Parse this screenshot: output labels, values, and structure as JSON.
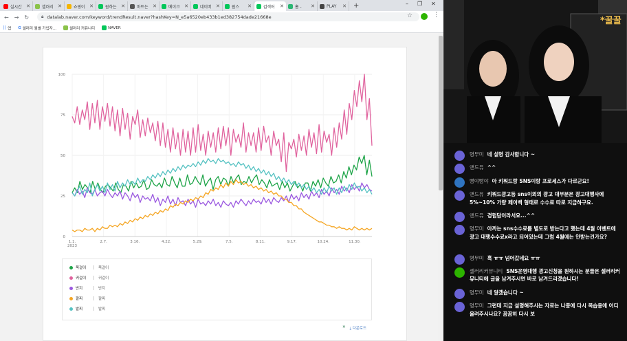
{
  "tabs": [
    {
      "title": "실시간",
      "color": "#ff0000"
    },
    {
      "title": "셀러리",
      "color": "#8bc34a"
    },
    {
      "title": "쇼핑이",
      "color": "#f5b400"
    },
    {
      "title": "원하는",
      "color": "#03c75a"
    },
    {
      "title": "마트는",
      "color": "#555555"
    },
    {
      "title": "메이크",
      "color": "#03c75a"
    },
    {
      "title": "네이버",
      "color": "#03c75a"
    },
    {
      "title": "원스",
      "color": "#03c75a"
    },
    {
      "title": "검색어",
      "color": "#03c75a",
      "active": true
    },
    {
      "title": "홈 -",
      "color": "#2bb673"
    },
    {
      "title": "PLAY",
      "color": "#444444"
    }
  ],
  "toolbar": {
    "url": "datalab.naver.com/keyword/trendResult.naver?hashKey=N_e5a6520eb433b1ed382754dade21668e"
  },
  "bookmarks": [
    "앱",
    "셀러리 월별 가입자...",
    "셀러리 커뮤니티",
    "NAVER"
  ],
  "chart_data": {
    "type": "line",
    "yticks": [
      "100",
      "75",
      "50",
      "25",
      "0"
    ],
    "xticks": [
      "1.1.\n2023",
      "2.7.",
      "3.16.",
      "4.22.",
      "5.29.",
      "7.5.",
      "8.11.",
      "9.17.",
      "10.24.",
      "11.30."
    ],
    "ylim": [
      0,
      100
    ],
    "series": [
      {
        "name": "목걸이",
        "color": "#1ea448",
        "values": [
          27,
          30,
          27,
          34,
          29,
          32,
          30,
          27,
          34,
          29,
          33,
          29,
          27,
          31,
          32,
          30,
          28,
          33,
          29,
          27,
          32,
          31,
          28,
          34,
          30,
          33,
          30,
          31,
          35,
          29,
          30,
          35,
          32,
          31,
          33,
          30,
          36,
          32,
          31,
          37,
          33,
          30,
          36,
          31,
          31,
          38,
          32,
          33,
          37,
          34,
          32,
          38,
          31,
          34,
          36,
          29,
          35,
          37,
          32,
          36,
          35,
          31,
          37,
          33,
          36,
          38,
          32,
          34,
          33,
          37,
          33,
          36,
          38,
          32,
          35,
          33,
          30,
          35,
          31,
          32,
          33,
          29,
          34,
          30,
          33,
          28,
          31,
          34,
          30,
          32,
          28,
          33,
          33,
          28,
          34,
          31,
          35,
          30,
          36,
          33,
          31,
          37,
          33,
          34,
          38,
          33,
          40,
          36,
          43,
          38,
          44,
          41,
          49,
          45,
          50,
          38,
          47,
          37
        ]
      },
      {
        "name": "귀걸이",
        "color": "#e0639e",
        "values": [
          74,
          70,
          80,
          69,
          78,
          72,
          83,
          66,
          82,
          70,
          84,
          66,
          80,
          71,
          82,
          68,
          80,
          65,
          78,
          62,
          79,
          66,
          76,
          60,
          74,
          69,
          78,
          61,
          72,
          62,
          73,
          64,
          70,
          59,
          71,
          56,
          70,
          55,
          66,
          52,
          67,
          54,
          64,
          50,
          66,
          52,
          65,
          50,
          67,
          52,
          69,
          53,
          63,
          50,
          65,
          55,
          64,
          52,
          67,
          54,
          68,
          56,
          67,
          50,
          66,
          58,
          63,
          55,
          70,
          52,
          64,
          56,
          64,
          52,
          67,
          53,
          68,
          58,
          62,
          50,
          65,
          56,
          60,
          46,
          64,
          40,
          58,
          54,
          60,
          49,
          63,
          53,
          62,
          50,
          66,
          55,
          64,
          51,
          69,
          52,
          65,
          58,
          63,
          50,
          67,
          55,
          70,
          60,
          78,
          63,
          82,
          72,
          90,
          80,
          96,
          83,
          100,
          72,
          85,
          56
        ]
      },
      {
        "name": "반지",
        "color": "#9b59e0",
        "values": [
          27,
          25,
          29,
          26,
          28,
          24,
          30,
          27,
          26,
          29,
          25,
          27,
          28,
          25,
          29,
          26,
          24,
          27,
          25,
          28,
          23,
          27,
          25,
          22,
          27,
          24,
          26,
          21,
          25,
          23,
          24,
          22,
          26,
          21,
          24,
          19,
          23,
          21,
          25,
          20,
          23,
          19,
          24,
          21,
          22,
          19,
          23,
          20,
          22,
          18,
          23,
          20,
          21,
          19,
          22,
          20,
          23,
          19,
          21,
          18,
          22,
          20,
          19,
          21,
          18,
          22,
          20,
          23,
          21,
          19,
          22,
          20,
          23,
          21,
          22,
          20,
          24,
          21,
          23,
          20,
          24,
          22,
          21,
          24,
          22,
          25,
          21,
          26,
          23,
          25,
          22,
          27,
          24,
          26,
          23,
          28,
          25,
          27,
          24,
          29,
          26,
          28,
          25,
          30,
          27,
          29,
          26,
          31,
          28,
          30,
          27,
          32,
          29,
          31,
          28,
          33,
          30,
          32,
          29,
          28
        ]
      },
      {
        "name": "팔찌",
        "color": "#f5a623",
        "values": [
          4,
          3,
          4,
          4,
          3,
          5,
          4,
          4,
          5,
          3,
          5,
          4,
          6,
          5,
          5,
          7,
          6,
          7,
          6,
          8,
          7,
          9,
          8,
          10,
          9,
          11,
          10,
          12,
          11,
          13,
          12,
          14,
          13,
          15,
          14,
          16,
          15,
          17,
          16,
          19,
          18,
          20,
          19,
          21,
          20,
          22,
          21,
          23,
          22,
          24,
          23,
          25,
          24,
          27,
          26,
          29,
          28,
          30,
          29,
          32,
          30,
          33,
          31,
          34,
          32,
          35,
          33,
          34,
          32,
          33,
          31,
          32,
          30,
          31,
          29,
          30,
          28,
          29,
          27,
          28,
          26,
          27,
          25,
          25,
          23,
          23,
          21,
          21,
          19,
          19,
          17,
          17,
          15,
          14,
          13,
          12,
          11,
          10,
          9,
          9,
          8,
          7,
          7,
          6,
          6,
          5,
          6,
          5,
          5,
          4,
          5,
          4,
          6,
          5,
          4,
          5,
          4,
          5,
          4,
          5
        ]
      },
      {
        "name": "발찌",
        "color": "#56c2c2",
        "values": [
          27,
          25,
          28,
          31,
          26,
          29,
          27,
          33,
          25,
          29,
          32,
          28,
          31,
          27,
          33,
          29,
          32,
          28,
          34,
          30,
          33,
          31,
          35,
          32,
          34,
          32,
          36,
          33,
          35,
          34,
          37,
          35,
          38,
          36,
          39,
          37,
          40,
          38,
          41,
          39,
          42,
          40,
          43,
          41,
          44,
          42,
          44,
          43,
          45,
          43,
          46,
          44,
          47,
          45,
          48,
          46,
          47,
          45,
          48,
          46,
          47,
          45,
          46,
          44,
          45,
          43,
          46,
          44,
          45,
          42,
          44,
          41,
          43,
          40,
          42,
          39,
          41,
          38,
          40,
          37,
          39,
          35,
          37,
          34,
          36,
          33,
          35,
          32,
          34,
          31,
          33,
          30,
          32,
          29,
          31,
          28,
          30,
          27,
          29,
          26,
          30,
          27,
          31,
          28,
          30,
          26,
          30,
          27,
          31,
          28,
          32,
          29,
          33,
          30,
          31,
          28,
          30,
          27,
          29,
          26
        ]
      }
    ]
  },
  "legend": [
    {
      "key": "목걸이",
      "value": "목걸이",
      "color": "#1ea448"
    },
    {
      "key": "귀걸이",
      "value": "귀걸이",
      "color": "#e0639e"
    },
    {
      "key": "반지",
      "value": "반지",
      "color": "#9b59e0"
    },
    {
      "key": "팔찌",
      "value": "팔찌",
      "color": "#f5a623"
    },
    {
      "key": "발찌",
      "value": "발찌",
      "color": "#56c2c2"
    }
  ],
  "download_label": "다운로드",
  "chat": [
    {
      "name": "명무미",
      "text": "네 설명 감사합니다 ~",
      "color": "#6a63d6"
    },
    {
      "name": "앤드유",
      "text": "^^",
      "color": "#6a63d6"
    },
    {
      "name": "빵야빵야",
      "text": "아 키워드랑 SNS이랑 프로세스가 다르군요!",
      "color": "#2f74c0"
    },
    {
      "name": "앤드유",
      "text": "키워드광고등 sns이외의 광고 대부분은 광고대행사에 5%~10% 가량 페이백 형태로 수수료 따로 지급하구요.",
      "color": "#6a63d6"
    },
    {
      "name": "앤드유",
      "text": "경험담이라서요...^^",
      "color": "#6a63d6"
    },
    {
      "name": "명무미",
      "text": "아까는 sns수수료를 별도로 받는다고 했는데 4월 이벤트에 광고 대행수수료x라고 되어있는데 그럼 4월에는 안받는건가요?",
      "color": "#6a63d6"
    },
    {
      "name": "명무미",
      "text": "흑 ㅠㅠ 넘어갔네요 ㅠㅠ",
      "color": "#6a63d6"
    },
    {
      "name": "셀러리커뮤니티",
      "text": "SNS운영대행 광고신청을 원하시는 분들은 셀러리커뮤니티에 글을 남겨주시면 바로 남겨드리겠습니다!",
      "color": "#2db400"
    },
    {
      "name": "명무미",
      "text": "네 알겠습니다 ~",
      "color": "#6a63d6"
    },
    {
      "name": "명무미",
      "text": "그런데 지금 설명해주시는 자료는 나중에 다시 복습용에 어디 올려주시나요? 꼼꼼히 다시 보",
      "color": "#6a63d6"
    }
  ],
  "video": {
    "banner": "*꿀꿀"
  }
}
